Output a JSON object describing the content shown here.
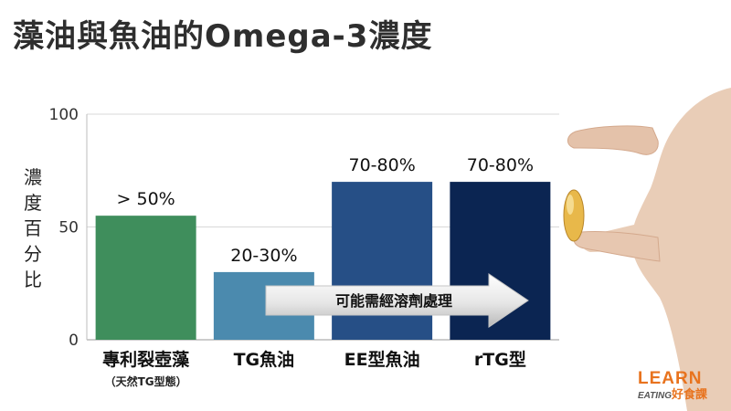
{
  "title": "藻油與魚油的Omega-3濃度",
  "chart_data": {
    "type": "bar",
    "title": "藻油與魚油的Omega-3濃度",
    "ylabel": "濃度百分比",
    "xlabel": "",
    "ylim": [
      0,
      100
    ],
    "yticks": [
      0,
      50,
      100
    ],
    "grid": true,
    "categories": [
      "專利裂壺藻",
      "TG魚油",
      "EE型魚油",
      "rTG型"
    ],
    "category_sublabels": [
      "（天然TG型態）",
      "",
      "",
      ""
    ],
    "values": [
      55,
      30,
      70,
      70
    ],
    "data_labels": [
      "> 50%",
      "20-30%",
      "70-80%",
      "70-80%"
    ],
    "colors": [
      "#3f8e5c",
      "#4b8aae",
      "#264f86",
      "#0b2552"
    ],
    "annotation": "可能需經溶劑處理"
  },
  "logo": {
    "main": "LEARN",
    "sub_en": "EATING",
    "sub_cn": "好食課"
  }
}
